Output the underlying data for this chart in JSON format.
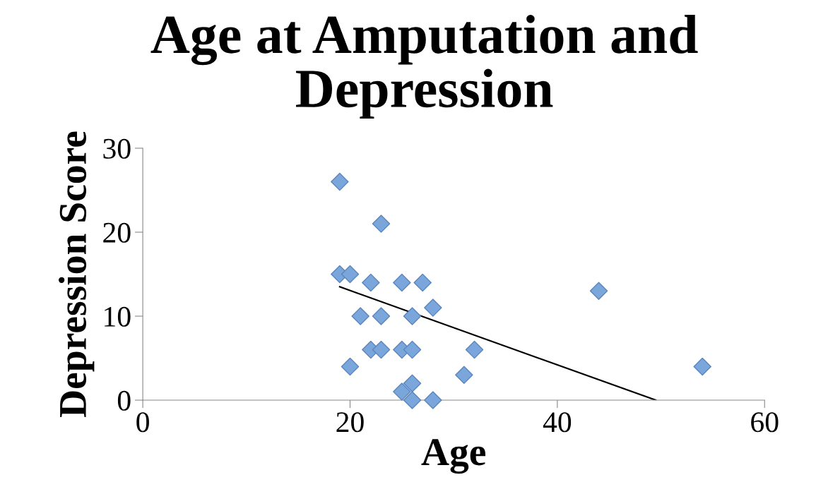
{
  "chart_data": {
    "type": "scatter",
    "title": "Age at Amputation and Depression",
    "xlabel": "Age",
    "ylabel": "Depression Score",
    "xlim": [
      0,
      60
    ],
    "xticks": [
      0,
      20,
      40,
      60
    ],
    "ylim": [
      0,
      30
    ],
    "yticks": [
      0,
      10,
      20,
      30
    ],
    "grid": false,
    "legend": false,
    "marker": "diamond",
    "series": [
      {
        "color": "#7aa6dc",
        "x": [
          19,
          23,
          19,
          20,
          22,
          25,
          27,
          21,
          23,
          26,
          28,
          22,
          23,
          25,
          26,
          32,
          20,
          31,
          25,
          26,
          26,
          28,
          44,
          54
        ],
        "values": [
          26,
          21,
          15,
          15,
          14,
          14,
          14,
          10,
          10,
          10,
          11,
          6,
          6,
          6,
          6,
          6,
          4,
          3,
          1,
          2,
          0,
          0,
          13,
          4
        ]
      },
      {
        "type": "line",
        "color": "#000000",
        "marker": "none",
        "x": [
          19,
          49.5
        ],
        "values": [
          13.5,
          0
        ]
      }
    ]
  }
}
